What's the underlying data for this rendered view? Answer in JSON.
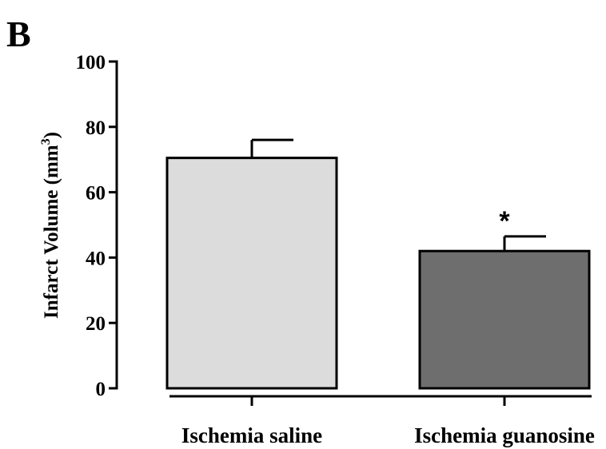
{
  "panel_label": "B",
  "chart_data": {
    "type": "bar",
    "categories": [
      "Ischemia saline",
      "Ischemia guanosine"
    ],
    "values": [
      70.5,
      42
    ],
    "errors": [
      5.5,
      4.5
    ],
    "bar_colors": [
      "#dcdcdc",
      "#6e6e6e"
    ],
    "annotations": [
      "",
      "*"
    ],
    "ylabel_main": "Infarct Volume  (mm",
    "ylabel_sup": "3",
    "ylabel_close": ")",
    "ylim": [
      0,
      100
    ],
    "yticks": [
      "0",
      "20",
      "40",
      "60",
      "80",
      "100"
    ],
    "grid": false
  }
}
